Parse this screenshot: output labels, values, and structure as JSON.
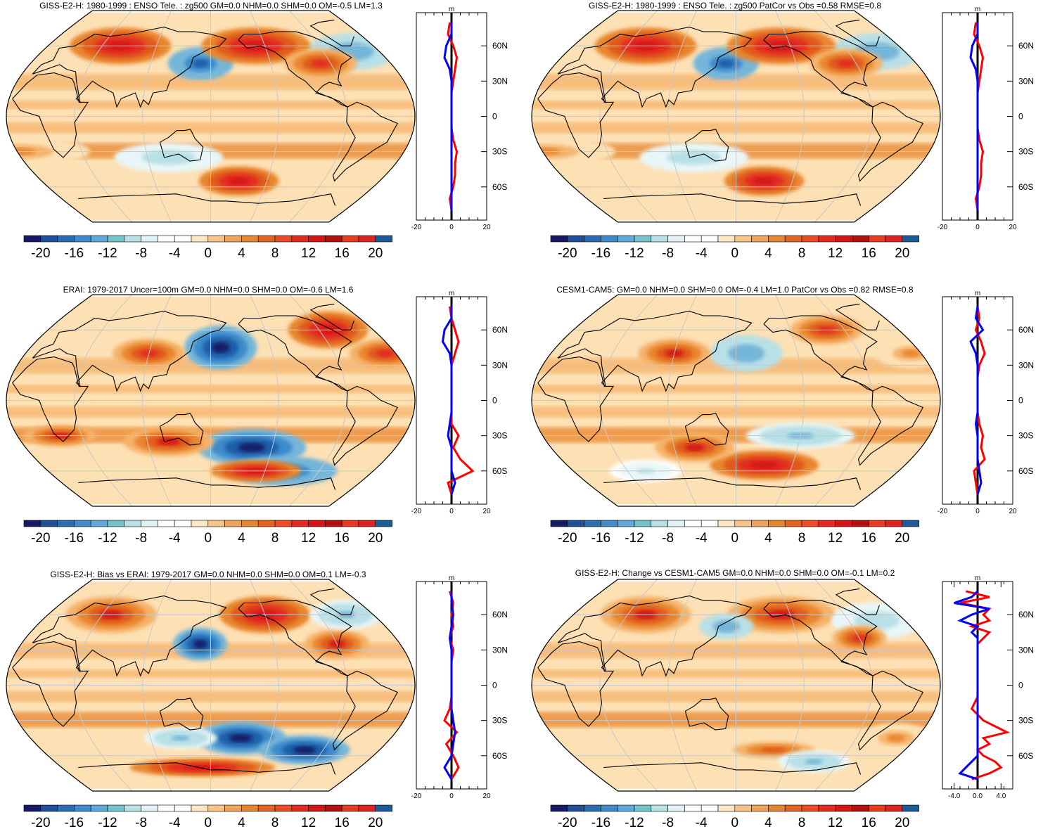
{
  "colors": {
    "scale": [
      "#181b6b",
      "#1e5ba6",
      "#3a86c8",
      "#6aaede",
      "#84c8c8",
      "#b4dfe6",
      "#e4f3f4",
      "#ffffff",
      "#ffffff",
      "#fde6c2",
      "#f7bb7a",
      "#ea8a34",
      "#d9601a",
      "#e53b1f",
      "#e51a1a",
      "#c11b1b",
      "#8f1010",
      "#e52424",
      "#d42020",
      "#1d5a9a"
    ],
    "zonal_model": "#ff0000",
    "zonal_obs": "#0000ff",
    "zonal_axis": "#000000",
    "land": "#000000",
    "grid": "#c8c8c8"
  },
  "colorbar_ticks": [
    "-20",
    "-16",
    "-12",
    "-8",
    "-4",
    "0",
    "4",
    "8",
    "12",
    "16",
    "20"
  ],
  "panels": [
    {
      "title": "GISS-E2-H: 1980-1999 : ENSO Tele. : zg500 GM=0.0 NHM=0.0 SHM=0.0 OM=-0.5 LM=1.3",
      "blobs": [
        {
          "lon": 150,
          "lat": 45,
          "rx": 18,
          "ry": 9,
          "val": -18
        },
        {
          "lon": -50,
          "lat": 55,
          "rx": 25,
          "ry": 10,
          "val": -10
        },
        {
          "lon": 60,
          "lat": 60,
          "rx": 28,
          "ry": 10,
          "val": 14
        },
        {
          "lon": -150,
          "lat": 60,
          "rx": 30,
          "ry": 10,
          "val": 14
        },
        {
          "lon": -90,
          "lat": 45,
          "rx": 20,
          "ry": 8,
          "val": 10
        },
        {
          "lon": -170,
          "lat": -55,
          "rx": 22,
          "ry": 8,
          "val": 14
        },
        {
          "lon": 120,
          "lat": -35,
          "rx": 30,
          "ry": 8,
          "val": -6
        },
        {
          "lon": -20,
          "lat": -30,
          "rx": 40,
          "ry": 8,
          "val": 6
        }
      ],
      "zonal": {
        "lats": [
          80,
          70,
          60,
          50,
          40,
          30,
          20,
          10,
          0,
          -10,
          -20,
          -30,
          -40,
          -50,
          -60,
          -70,
          -80
        ],
        "model": [
          -1,
          -2,
          1,
          3,
          2,
          1,
          0,
          0,
          0,
          0,
          1,
          3,
          2,
          2,
          1,
          -1,
          0
        ],
        "obs": [
          0,
          0,
          -3,
          -4,
          -1,
          0,
          0,
          0,
          0,
          0,
          0,
          0,
          0,
          0,
          0,
          0,
          0
        ]
      },
      "zonal_ticks": [
        "-20",
        "0",
        "20"
      ],
      "zonal_unit": "m",
      "lat_labels": [
        "60N",
        "30N",
        "0",
        "30S",
        "60S"
      ]
    },
    {
      "title": "GISS-E2-H: 1980-1999 : ENSO Tele. : zg500 PatCor vs Obs =0.58 RMSE=0.8",
      "blobs": [
        {
          "lon": 150,
          "lat": 45,
          "rx": 18,
          "ry": 9,
          "val": -18
        },
        {
          "lon": -50,
          "lat": 55,
          "rx": 25,
          "ry": 10,
          "val": -10
        },
        {
          "lon": 60,
          "lat": 60,
          "rx": 28,
          "ry": 10,
          "val": 14
        },
        {
          "lon": -150,
          "lat": 60,
          "rx": 30,
          "ry": 10,
          "val": 14
        },
        {
          "lon": -90,
          "lat": 45,
          "rx": 20,
          "ry": 8,
          "val": 10
        },
        {
          "lon": -170,
          "lat": -55,
          "rx": 22,
          "ry": 8,
          "val": 14
        },
        {
          "lon": 120,
          "lat": -35,
          "rx": 30,
          "ry": 8,
          "val": -6
        },
        {
          "lon": -20,
          "lat": -30,
          "rx": 40,
          "ry": 8,
          "val": 6
        }
      ],
      "zonal": {
        "lats": [
          80,
          70,
          60,
          50,
          40,
          30,
          20,
          10,
          0,
          -10,
          -20,
          -30,
          -40,
          -50,
          -60,
          -70,
          -80
        ],
        "model": [
          -1,
          -2,
          1,
          3,
          2,
          1,
          0,
          0,
          0,
          0,
          1,
          3,
          2,
          2,
          1,
          -1,
          0
        ],
        "obs": [
          0,
          0,
          -3,
          -4,
          -1,
          0,
          0,
          0,
          0,
          0,
          0,
          0,
          0,
          0,
          0,
          0,
          0
        ]
      },
      "zonal_ticks": [
        "-20",
        "0",
        "20"
      ],
      "zonal_unit": "m",
      "lat_labels": [
        "60N",
        "30N",
        "0",
        "30S",
        "60S"
      ]
    },
    {
      "title": "ERAI: 1979-2017 Uncer=100m GM=0.0 NHM=0.0 SHM=0.0 OM=-0.6 LM=1.6",
      "blobs": [
        {
          "lon": 170,
          "lat": 45,
          "rx": 20,
          "ry": 12,
          "val": -22
        },
        {
          "lon": -70,
          "lat": 60,
          "rx": 22,
          "ry": 10,
          "val": 14
        },
        {
          "lon": 100,
          "lat": 40,
          "rx": 20,
          "ry": 8,
          "val": 10
        },
        {
          "lon": -30,
          "lat": 40,
          "rx": 20,
          "ry": 8,
          "val": 10
        },
        {
          "lon": -160,
          "lat": -40,
          "rx": 30,
          "ry": 10,
          "val": -20
        },
        {
          "lon": -120,
          "lat": -60,
          "rx": 30,
          "ry": 8,
          "val": -18
        },
        {
          "lon": -150,
          "lat": -60,
          "rx": 25,
          "ry": 6,
          "val": 14
        },
        {
          "lon": 120,
          "lat": -35,
          "rx": 25,
          "ry": 8,
          "val": 12
        },
        {
          "lon": 20,
          "lat": -30,
          "rx": 20,
          "ry": 6,
          "val": 12
        }
      ],
      "zonal": {
        "lats": [
          80,
          70,
          60,
          50,
          40,
          30,
          20,
          10,
          0,
          -10,
          -20,
          -30,
          -40,
          -50,
          -60,
          -70,
          -80
        ],
        "model": [
          -1,
          0,
          2,
          4,
          2,
          0,
          0,
          0,
          0,
          0,
          0,
          4,
          1,
          5,
          12,
          -2,
          0
        ],
        "obs": [
          0,
          0,
          -4,
          -5,
          -1,
          0,
          0,
          0,
          0,
          0,
          -1,
          -2,
          0,
          0,
          0,
          2,
          0
        ]
      },
      "zonal_ticks": [
        "-20",
        "0",
        "20"
      ],
      "zonal_unit": "m",
      "lat_labels": [
        "60N",
        "30N",
        "0",
        "30S",
        "60S"
      ]
    },
    {
      "title": "CESM1-CAM5: GM=0.0 NHM=0.0 SHM=0.0 OM=-0.4 LM=1.0 PatCor vs Obs =0.82 RMSE=0.8",
      "blobs": [
        {
          "lon": 170,
          "lat": 40,
          "rx": 20,
          "ry": 10,
          "val": -10
        },
        {
          "lon": 100,
          "lat": 40,
          "rx": 20,
          "ry": 8,
          "val": 12
        },
        {
          "lon": -100,
          "lat": 60,
          "rx": 20,
          "ry": 8,
          "val": 10
        },
        {
          "lon": -30,
          "lat": 40,
          "rx": 20,
          "ry": 8,
          "val": 6
        },
        {
          "lon": -140,
          "lat": -30,
          "rx": 30,
          "ry": 7,
          "val": -8
        },
        {
          "lon": -170,
          "lat": -55,
          "rx": 30,
          "ry": 8,
          "val": 14
        },
        {
          "lon": 120,
          "lat": -40,
          "rx": 22,
          "ry": 8,
          "val": 12
        },
        {
          "lon": 60,
          "lat": -60,
          "rx": 20,
          "ry": 6,
          "val": -4
        }
      ],
      "zonal": {
        "lats": [
          80,
          70,
          60,
          50,
          40,
          30,
          20,
          10,
          0,
          -10,
          -20,
          -30,
          -40,
          -50,
          -60,
          -70,
          -80
        ],
        "model": [
          0,
          1,
          -1,
          2,
          4,
          1,
          0,
          0,
          0,
          0,
          1,
          3,
          2,
          4,
          -2,
          -1,
          0
        ],
        "obs": [
          0,
          -1,
          3,
          -4,
          -1,
          0,
          0,
          0,
          0,
          0,
          -1,
          0,
          0,
          0,
          1,
          2,
          0
        ]
      },
      "zonal_ticks": [
        "-20",
        "0",
        "20"
      ],
      "zonal_unit": "m",
      "lat_labels": [
        "60N",
        "30N",
        "0",
        "30S",
        "60S"
      ]
    },
    {
      "title": "GISS-E2-H: Bias vs ERAI: 1979-2017 GM=0.0 NHM=0.0 SHM=0.0 OM=0.1 LM=-0.3",
      "blobs": [
        {
          "lon": 150,
          "lat": 35,
          "rx": 15,
          "ry": 9,
          "val": -20
        },
        {
          "lon": -170,
          "lat": -45,
          "rx": 25,
          "ry": 9,
          "val": -22
        },
        {
          "lon": -100,
          "lat": -55,
          "rx": 25,
          "ry": 8,
          "val": -20
        },
        {
          "lon": -140,
          "lat": 60,
          "rx": 25,
          "ry": 10,
          "val": 14
        },
        {
          "lon": 50,
          "lat": 60,
          "rx": 25,
          "ry": 10,
          "val": 12
        },
        {
          "lon": -80,
          "lat": 35,
          "rx": 18,
          "ry": 8,
          "val": 12
        },
        {
          "lon": 130,
          "lat": -45,
          "rx": 20,
          "ry": 6,
          "val": -8
        },
        {
          "lon": -50,
          "lat": 60,
          "rx": 20,
          "ry": 8,
          "val": -8
        },
        {
          "lon": 150,
          "lat": -70,
          "rx": 40,
          "ry": 5,
          "val": 14
        }
      ],
      "zonal": {
        "lats": [
          80,
          70,
          60,
          50,
          40,
          30,
          20,
          10,
          0,
          -10,
          -20,
          -30,
          -40,
          -50,
          -60,
          -70,
          -80
        ],
        "model": [
          -1,
          1,
          0,
          1,
          -1,
          1,
          0,
          0,
          0,
          0,
          -1,
          -4,
          3,
          -3,
          1,
          4,
          0
        ],
        "obs": [
          0,
          0,
          1,
          0,
          -1,
          0,
          0,
          0,
          0,
          0,
          0,
          1,
          2,
          1,
          0,
          -4,
          0
        ]
      },
      "zonal_ticks": [
        "-20",
        "0",
        "20"
      ],
      "zonal_unit": "m",
      "lat_labels": [
        "60N",
        "30N",
        "0",
        "30S",
        "60S"
      ]
    },
    {
      "title": "GISS-E2-H: Change vs CESM1-CAM5 GM=0.0 NHM=0.0 SHM=0.0 OM=-0.1 LM=0.2",
      "blobs": [
        {
          "lon": 60,
          "lat": 60,
          "rx": 25,
          "ry": 10,
          "val": 12
        },
        {
          "lon": -150,
          "lat": 60,
          "rx": 30,
          "ry": 10,
          "val": 12
        },
        {
          "lon": 150,
          "lat": 50,
          "rx": 15,
          "ry": 7,
          "val": -10
        },
        {
          "lon": -50,
          "lat": 55,
          "rx": 25,
          "ry": 10,
          "val": -6
        },
        {
          "lon": -80,
          "lat": 40,
          "rx": 15,
          "ry": 7,
          "val": 10
        },
        {
          "lon": -160,
          "lat": -55,
          "rx": 30,
          "ry": 6,
          "val": 8
        },
        {
          "lon": -110,
          "lat": -65,
          "rx": 20,
          "ry": 6,
          "val": -8
        },
        {
          "lon": -40,
          "lat": -45,
          "rx": 20,
          "ry": 8,
          "val": 6
        }
      ],
      "zonal": {
        "lats": [
          80,
          75,
          70,
          65,
          60,
          55,
          50,
          45,
          40,
          35,
          30,
          20,
          10,
          0,
          -10,
          -20,
          -30,
          -35,
          -40,
          -45,
          -50,
          -55,
          -60,
          -65,
          -70,
          -75,
          -80
        ],
        "model": [
          -2,
          2,
          -3,
          2,
          1,
          2,
          -1,
          2,
          1,
          0,
          0,
          0,
          0,
          0,
          0,
          -1,
          1,
          3,
          5,
          1,
          2,
          0,
          1,
          3,
          4,
          2,
          -1
        ],
        "obs": [
          0,
          -1,
          -4,
          2,
          -1,
          -3,
          0,
          -1,
          0,
          0,
          0,
          0,
          0,
          0,
          0,
          0,
          0,
          0,
          0,
          0,
          0,
          0,
          0,
          -1,
          -2,
          -3,
          0
        ]
      },
      "zonal_ticks": [
        "-4.0",
        "0.0",
        "4.0"
      ],
      "zonal_unit": "m",
      "lat_labels": [
        "60N",
        "30N",
        "0",
        "30S",
        "60S"
      ]
    }
  ]
}
